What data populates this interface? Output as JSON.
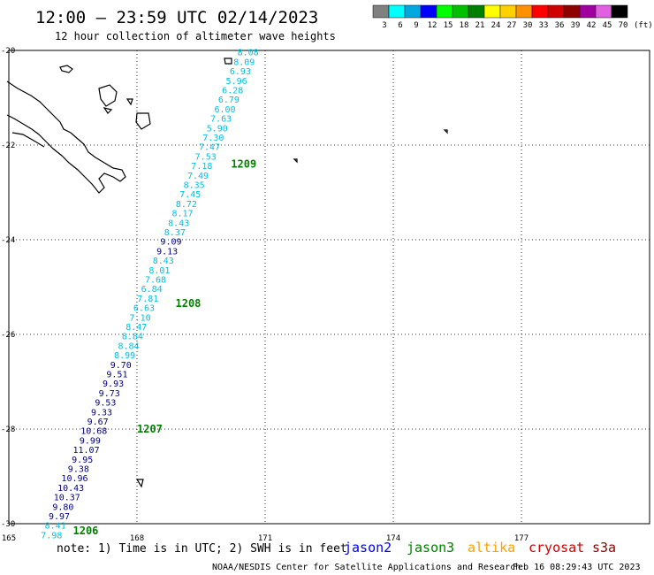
{
  "header": {
    "title": "12:00 – 23:59 UTC 02/14/2023",
    "subtitle": "12 hour collection of altimeter wave heights"
  },
  "legend": {
    "unit": "(ft)",
    "bins": [
      {
        "label": "3",
        "color": "#808080"
      },
      {
        "label": "6",
        "color": "#00ffff"
      },
      {
        "label": "9",
        "color": "#00a8e0"
      },
      {
        "label": "12",
        "color": "#0000ff"
      },
      {
        "label": "15",
        "color": "#00ff00"
      },
      {
        "label": "18",
        "color": "#00c000"
      },
      {
        "label": "21",
        "color": "#008000"
      },
      {
        "label": "24",
        "color": "#ffff00"
      },
      {
        "label": "27",
        "color": "#ffd000"
      },
      {
        "label": "30",
        "color": "#ff9000"
      },
      {
        "label": "33",
        "color": "#ff0000"
      },
      {
        "label": "36",
        "color": "#d00000"
      },
      {
        "label": "39",
        "color": "#900000"
      },
      {
        "label": "42",
        "color": "#a000a0"
      },
      {
        "label": "45",
        "color": "#e060e0"
      },
      {
        "label": "70",
        "color": "#000000"
      }
    ]
  },
  "map": {
    "lon_range": [
      165,
      180
    ],
    "lat_range": [
      -30,
      -20
    ],
    "lon_ticks": [
      "165",
      "168",
      "171",
      "174",
      "177"
    ],
    "lat_ticks": [
      "-20",
      "-22",
      "-24",
      "-26",
      "-28",
      "-30"
    ],
    "grid": true
  },
  "track": {
    "color_dark": "#00008b",
    "color_light": "#00c0e0",
    "points": [
      {
        "lat": -20.05,
        "v": "8.08",
        "band": "light"
      },
      {
        "lat": -20.25,
        "v": "8.09",
        "band": "light"
      },
      {
        "lat": -20.45,
        "v": "6.93",
        "band": "light"
      },
      {
        "lat": -20.65,
        "v": "5.96",
        "band": "light"
      },
      {
        "lat": -20.85,
        "v": "6.28",
        "band": "light"
      },
      {
        "lat": -21.05,
        "v": "6.79",
        "band": "light"
      },
      {
        "lat": -21.25,
        "v": "6.00",
        "band": "light"
      },
      {
        "lat": -21.45,
        "v": "7.63",
        "band": "light"
      },
      {
        "lat": -21.65,
        "v": "5.90",
        "band": "light"
      },
      {
        "lat": -21.85,
        "v": "7.30",
        "band": "light"
      },
      {
        "lat": -22.05,
        "v": "7.47",
        "band": "light"
      },
      {
        "lat": -22.25,
        "v": "7.53",
        "band": "light"
      },
      {
        "lat": -22.45,
        "v": "7.18",
        "band": "light"
      },
      {
        "lat": -22.65,
        "v": "7.49",
        "band": "light"
      },
      {
        "lat": -22.85,
        "v": "8.35",
        "band": "light"
      },
      {
        "lat": -23.05,
        "v": "7.45",
        "band": "light"
      },
      {
        "lat": -23.25,
        "v": "8.72",
        "band": "light"
      },
      {
        "lat": -23.45,
        "v": "8.17",
        "band": "light"
      },
      {
        "lat": -23.65,
        "v": "8.43",
        "band": "light"
      },
      {
        "lat": -23.85,
        "v": "8.37",
        "band": "light"
      },
      {
        "lat": -24.05,
        "v": "9.09",
        "band": "dark"
      },
      {
        "lat": -24.25,
        "v": "9.13",
        "band": "dark"
      },
      {
        "lat": -24.45,
        "v": "8.43",
        "band": "light"
      },
      {
        "lat": -24.65,
        "v": "8.01",
        "band": "light"
      },
      {
        "lat": -24.85,
        "v": "7.68",
        "band": "light"
      },
      {
        "lat": -25.05,
        "v": "6.84",
        "band": "light"
      },
      {
        "lat": -25.25,
        "v": "7.81",
        "band": "light"
      },
      {
        "lat": -25.45,
        "v": "6.63",
        "band": "light"
      },
      {
        "lat": -25.65,
        "v": "7.10",
        "band": "light"
      },
      {
        "lat": -25.85,
        "v": "8.47",
        "band": "light"
      },
      {
        "lat": -26.05,
        "v": "8.84",
        "band": "light"
      },
      {
        "lat": -26.25,
        "v": "8.84",
        "band": "light"
      },
      {
        "lat": -26.45,
        "v": "8.99",
        "band": "light"
      },
      {
        "lat": -26.65,
        "v": "9.70",
        "band": "dark"
      },
      {
        "lat": -26.85,
        "v": "9.51",
        "band": "dark"
      },
      {
        "lat": -27.05,
        "v": "9.93",
        "band": "dark"
      },
      {
        "lat": -27.25,
        "v": "9.73",
        "band": "dark"
      },
      {
        "lat": -27.45,
        "v": "9.53",
        "band": "dark"
      },
      {
        "lat": -27.65,
        "v": "9.33",
        "band": "dark"
      },
      {
        "lat": -27.85,
        "v": "9.67",
        "band": "dark"
      },
      {
        "lat": -28.05,
        "v": "10.68",
        "band": "dark"
      },
      {
        "lat": -28.25,
        "v": "9.99",
        "band": "dark"
      },
      {
        "lat": -28.45,
        "v": "11.07",
        "band": "dark"
      },
      {
        "lat": -28.65,
        "v": "9.95",
        "band": "dark"
      },
      {
        "lat": -28.85,
        "v": "9.38",
        "band": "dark"
      },
      {
        "lat": -29.05,
        "v": "10.96",
        "band": "dark"
      },
      {
        "lat": -29.25,
        "v": "10.43",
        "band": "dark"
      },
      {
        "lat": -29.45,
        "v": "10.37",
        "band": "dark"
      },
      {
        "lat": -29.65,
        "v": "9.80",
        "band": "dark"
      },
      {
        "lat": -29.85,
        "v": "9.97",
        "band": "dark"
      },
      {
        "lat": -30.05,
        "v": "8.41",
        "band": "light"
      },
      {
        "lat": -30.25,
        "v": "7.98",
        "band": "light"
      }
    ],
    "time_labels": [
      {
        "lat": -22.4,
        "lon": 170.2,
        "text": "1209"
      },
      {
        "lat": -25.35,
        "lon": 168.9,
        "text": "1208"
      },
      {
        "lat": -28.0,
        "lon": 168.0,
        "text": "1207"
      },
      {
        "lat": -30.15,
        "lon": 166.5,
        "text": "1206"
      }
    ],
    "time_label_color": "#008000"
  },
  "footer": {
    "note": "note: 1) Time is in UTC; 2) SWH is in feet",
    "satellites": [
      {
        "name": "jason2",
        "color": "#0000ff"
      },
      {
        "name": "jason3",
        "color": "#008000"
      },
      {
        "name": "altika",
        "color": "#ffa000"
      },
      {
        "name": "cryosat",
        "color": "#d00000"
      },
      {
        "name": "s3a",
        "color": "#900000"
      }
    ],
    "credit": "NOAA/NESDIS Center for Satellite Applications and Research",
    "timestamp": "Feb 16 08:29:43 UTC 2023"
  }
}
